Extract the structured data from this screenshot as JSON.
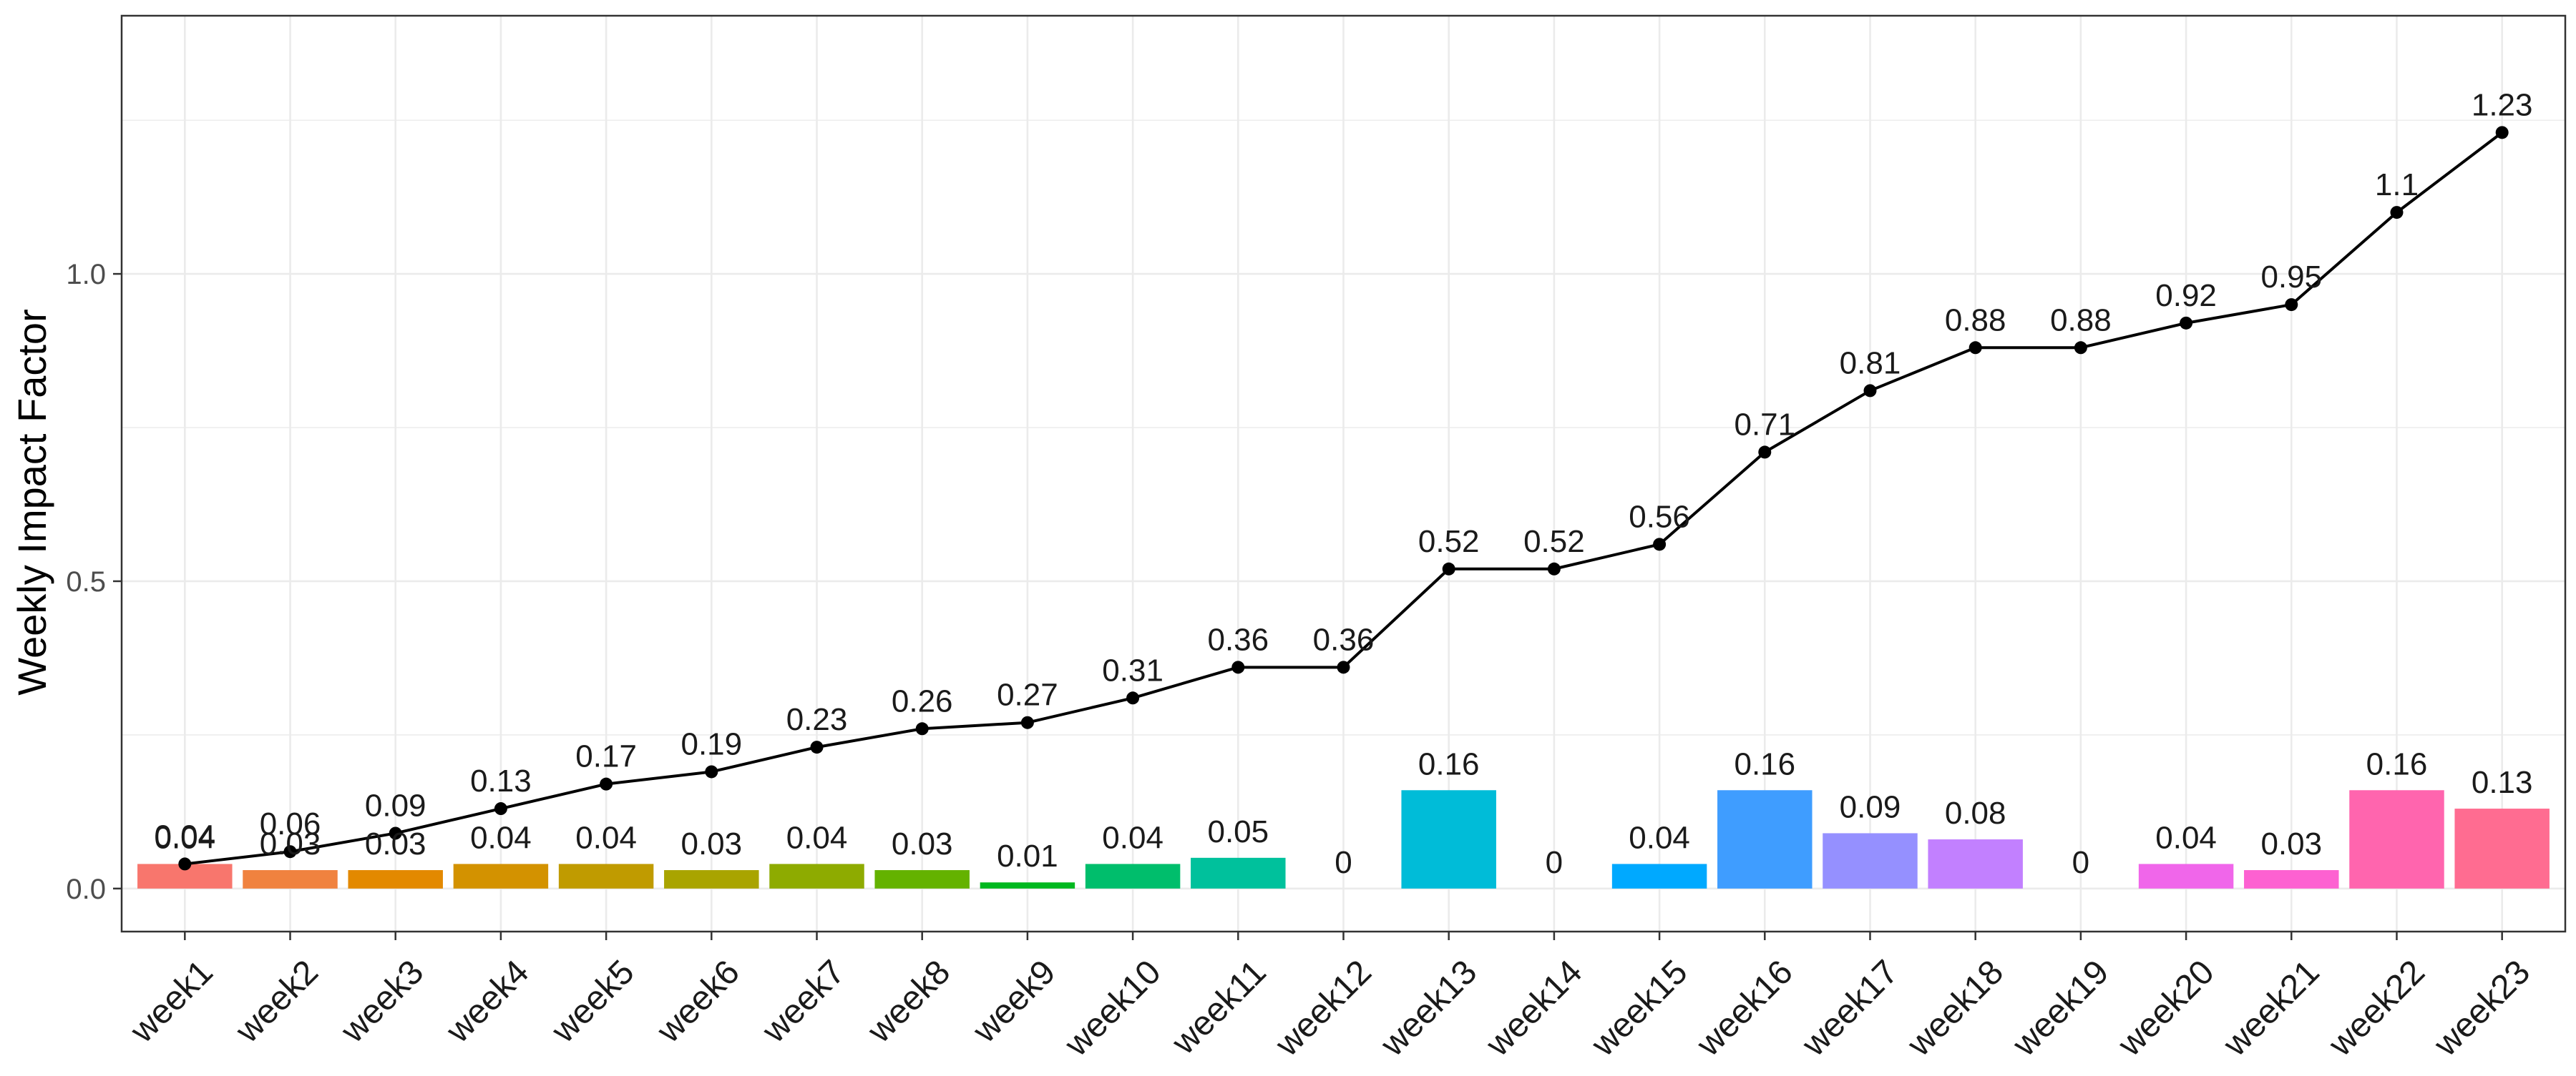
{
  "chart_data": {
    "type": "bar",
    "title": "",
    "xlabel": "",
    "ylabel": "Weekly Impact Factor",
    "ylim": [
      -0.07,
      1.42
    ],
    "yticks": [
      0.0,
      0.5,
      1.0
    ],
    "ytick_labels": [
      "0.0",
      "0.5",
      "1.0"
    ],
    "grid": true,
    "legend": "none",
    "categories": [
      "week1",
      "week2",
      "week3",
      "week4",
      "week5",
      "week6",
      "week7",
      "week8",
      "week9",
      "week10",
      "week11",
      "week12",
      "week13",
      "week14",
      "week15",
      "week16",
      "week17",
      "week18",
      "week19",
      "week20",
      "week21",
      "week22",
      "week23"
    ],
    "series": [
      {
        "type": "bar",
        "values": [
          0.04,
          0.03,
          0.03,
          0.04,
          0.04,
          0.03,
          0.04,
          0.03,
          0.01,
          0.04,
          0.05,
          0,
          0.16,
          0,
          0.04,
          0.16,
          0.09,
          0.08,
          0,
          0.04,
          0.03,
          0.16,
          0.13
        ],
        "labels": [
          "0.04",
          "0.03",
          "0.03",
          "0.04",
          "0.04",
          "0.03",
          "0.04",
          "0.03",
          "0.01",
          "0.04",
          "0.05",
          "0",
          "0.16",
          "0",
          "0.04",
          "0.16",
          "0.09",
          "0.08",
          "0",
          "0.04",
          "0.03",
          "0.16",
          "0.13"
        ],
        "colors": [
          "#F8766D",
          "#F0823F",
          "#E38900",
          "#D39200",
          "#C09B00",
          "#A9A400",
          "#8EAB00",
          "#64B200",
          "#00B81F",
          "#00BE6C",
          "#00C19C",
          "#00C0BA",
          "#00BCD8",
          "#00B4EF",
          "#00A9FF",
          "#3F9DFF",
          "#9590FF",
          "#C280FF",
          "#DB72FB",
          "#F066EA",
          "#FD61D1",
          "#FF65AE",
          "#FF6C91"
        ]
      },
      {
        "type": "line",
        "values": [
          0.04,
          0.06,
          0.09,
          0.13,
          0.17,
          0.19,
          0.23,
          0.26,
          0.27,
          0.31,
          0.36,
          0.36,
          0.52,
          0.52,
          0.56,
          0.71,
          0.81,
          0.88,
          0.88,
          0.92,
          0.95,
          1.1,
          1.23
        ],
        "labels": [
          "0.04",
          "0.06",
          "0.09",
          "0.13",
          "0.17",
          "0.19",
          "0.23",
          "0.26",
          "0.27",
          "0.31",
          "0.36",
          "0.36",
          "0.52",
          "0.52",
          "0.56",
          "0.71",
          "0.81",
          "0.88",
          "0.88",
          "0.92",
          "0.95",
          "1.1",
          "1.23"
        ],
        "color": "#000000"
      }
    ]
  }
}
